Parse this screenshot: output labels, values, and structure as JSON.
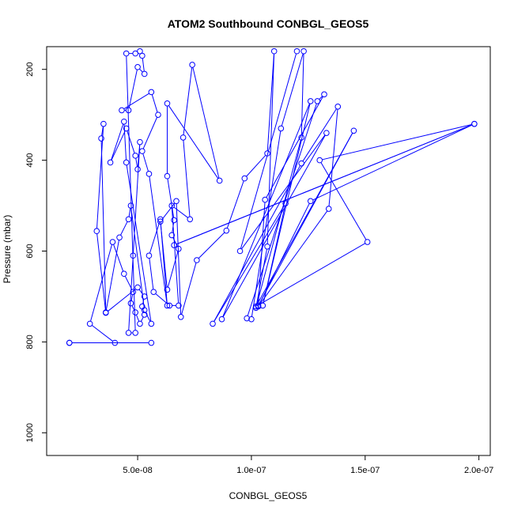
{
  "chart_data": {
    "type": "line",
    "title": "ATOM2 Southbound CONBGL_GEOS5",
    "xlabel": "CONBGL_GEOS5",
    "ylabel": "Pressure (mbar)",
    "xlim": [
      1e-08,
      2.05e-07
    ],
    "ylim": [
      1050,
      150
    ],
    "y_inverted": true,
    "x_ticks": [
      5e-08,
      1e-07,
      1.5e-07,
      2e-07
    ],
    "x_tick_labels": [
      "5.0e-08",
      "1.0e-07",
      "1.5e-07",
      "2.0e-07"
    ],
    "y_ticks": [
      200,
      400,
      600,
      800,
      1000
    ],
    "y_tick_labels": [
      "200",
      "400",
      "600",
      "800",
      "1000"
    ],
    "series_color": "#0000ff",
    "marker": "open-circle",
    "series": [
      {
        "points": [
          [
            2e-08,
            802
          ],
          [
            5.6e-08,
            802
          ],
          [
            2e-08,
            802
          ],
          [
            4e-08,
            802
          ],
          [
            2.9e-08,
            760
          ],
          [
            3.9e-08,
            580
          ],
          [
            4.4e-08,
            650
          ],
          [
            4.8e-08,
            690
          ],
          [
            4.7e-08,
            715
          ],
          [
            4.9e-08,
            735
          ],
          [
            5.1e-08,
            760
          ],
          [
            5.3e-08,
            740
          ],
          [
            5.2e-08,
            722
          ],
          [
            5.3e-08,
            700
          ],
          [
            5e-08,
            680
          ],
          [
            3.6e-08,
            736
          ],
          [
            3.2e-08,
            556
          ],
          [
            3.5e-08,
            320
          ],
          [
            3.4e-08,
            352
          ],
          [
            3.6e-08,
            735
          ],
          [
            4.2e-08,
            570
          ],
          [
            4.6e-08,
            530
          ],
          [
            4.7e-08,
            500
          ],
          [
            5.3e-08,
            730
          ],
          [
            5.6e-08,
            760
          ],
          [
            4.5e-08,
            405
          ],
          [
            4.4e-08,
            315
          ],
          [
            3.8e-08,
            405
          ],
          [
            4.5e-08,
            330
          ],
          [
            4.9e-08,
            390
          ],
          [
            5e-08,
            420
          ],
          [
            5.1e-08,
            360
          ],
          [
            4.8e-08,
            610
          ],
          [
            4.6e-08,
            780
          ],
          [
            4.9e-08,
            780
          ],
          [
            4.5e-08,
            165
          ],
          [
            4.9e-08,
            165
          ],
          [
            5.1e-08,
            160
          ],
          [
            5.2e-08,
            170
          ],
          [
            5.3e-08,
            210
          ],
          [
            5e-08,
            195
          ],
          [
            4.6e-08,
            290
          ],
          [
            4.3e-08,
            290
          ],
          [
            5.6e-08,
            250
          ],
          [
            5.9e-08,
            300
          ],
          [
            5.2e-08,
            380
          ],
          [
            5.5e-08,
            430
          ],
          [
            6.3e-08,
            720
          ],
          [
            6e-08,
            530
          ],
          [
            5.5e-08,
            610
          ],
          [
            5.7e-08,
            690
          ],
          [
            6.4e-08,
            720
          ],
          [
            6.8e-08,
            720
          ],
          [
            6.5e-08,
            500
          ],
          [
            7.3e-08,
            530
          ],
          [
            7e-08,
            350
          ],
          [
            7.4e-08,
            190
          ],
          [
            8.6e-08,
            445
          ],
          [
            6.3e-08,
            275
          ],
          [
            6.3e-08,
            435
          ],
          [
            6.6e-08,
            532
          ],
          [
            6.5e-08,
            565
          ],
          [
            6.8e-08,
            595
          ],
          [
            6.3e-08,
            685
          ],
          [
            6e-08,
            535
          ],
          [
            6.7e-08,
            490
          ],
          [
            6.9e-08,
            745
          ],
          [
            7.6e-08,
            620
          ],
          [
            8.9e-08,
            555
          ],
          [
            9.7e-08,
            440
          ],
          [
            1.07e-07,
            385
          ],
          [
            1.1e-07,
            160
          ],
          [
            1.07e-07,
            590
          ],
          [
            1.02e-07,
            725
          ],
          [
            1.22e-07,
            350
          ],
          [
            1.23e-07,
            160
          ],
          [
            1.13e-07,
            330
          ],
          [
            1e-07,
            750
          ],
          [
            9.8e-08,
            748
          ],
          [
            1.29e-07,
            270
          ],
          [
            1.32e-07,
            255
          ],
          [
            1.06e-07,
            487
          ],
          [
            1.03e-07,
            720
          ],
          [
            1.45e-07,
            335
          ],
          [
            1.02e-07,
            722
          ],
          [
            1.51e-07,
            580
          ],
          [
            1.3e-07,
            400
          ],
          [
            1.98e-07,
            320
          ],
          [
            6.6e-08,
            587
          ],
          [
            1.98e-07,
            320
          ],
          [
            1.26e-07,
            490
          ],
          [
            1.03e-07,
            722
          ],
          [
            1.34e-07,
            507
          ],
          [
            1.38e-07,
            282
          ],
          [
            1.22e-07,
            407
          ],
          [
            8.3e-08,
            760
          ],
          [
            1.15e-07,
            495
          ],
          [
            1.05e-07,
            720
          ],
          [
            1.26e-07,
            270
          ],
          [
            8.7e-08,
            750
          ],
          [
            1.33e-07,
            340
          ],
          [
            9.5e-08,
            600
          ],
          [
            1.2e-07,
            160
          ]
        ]
      }
    ]
  }
}
